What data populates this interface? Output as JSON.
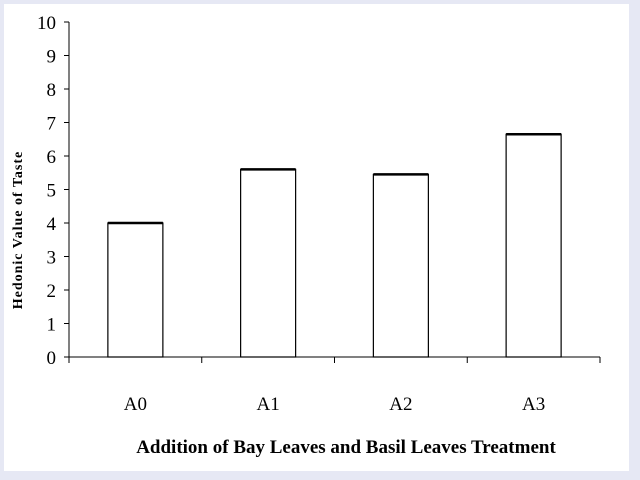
{
  "chart_data": {
    "type": "bar",
    "title": "",
    "xlabel": "Addition of Bay Leaves and Basil Leaves Treatment",
    "ylabel": "Hedonic Value of Taste",
    "categories": [
      "A0",
      "A1",
      "A2",
      "A3"
    ],
    "values": [
      4.0,
      5.6,
      5.45,
      6.65
    ],
    "ylim": [
      0,
      10
    ],
    "yticks": [
      "0",
      "1",
      "2",
      "3",
      "4",
      "5",
      "6",
      "7",
      "8",
      "9",
      "10"
    ],
    "grid": false,
    "legend": "none",
    "colors": {
      "bar_fill": "#ffffff",
      "bar_stroke": "#000000",
      "background": "#ffffff",
      "border": "#e6e8f4"
    }
  }
}
